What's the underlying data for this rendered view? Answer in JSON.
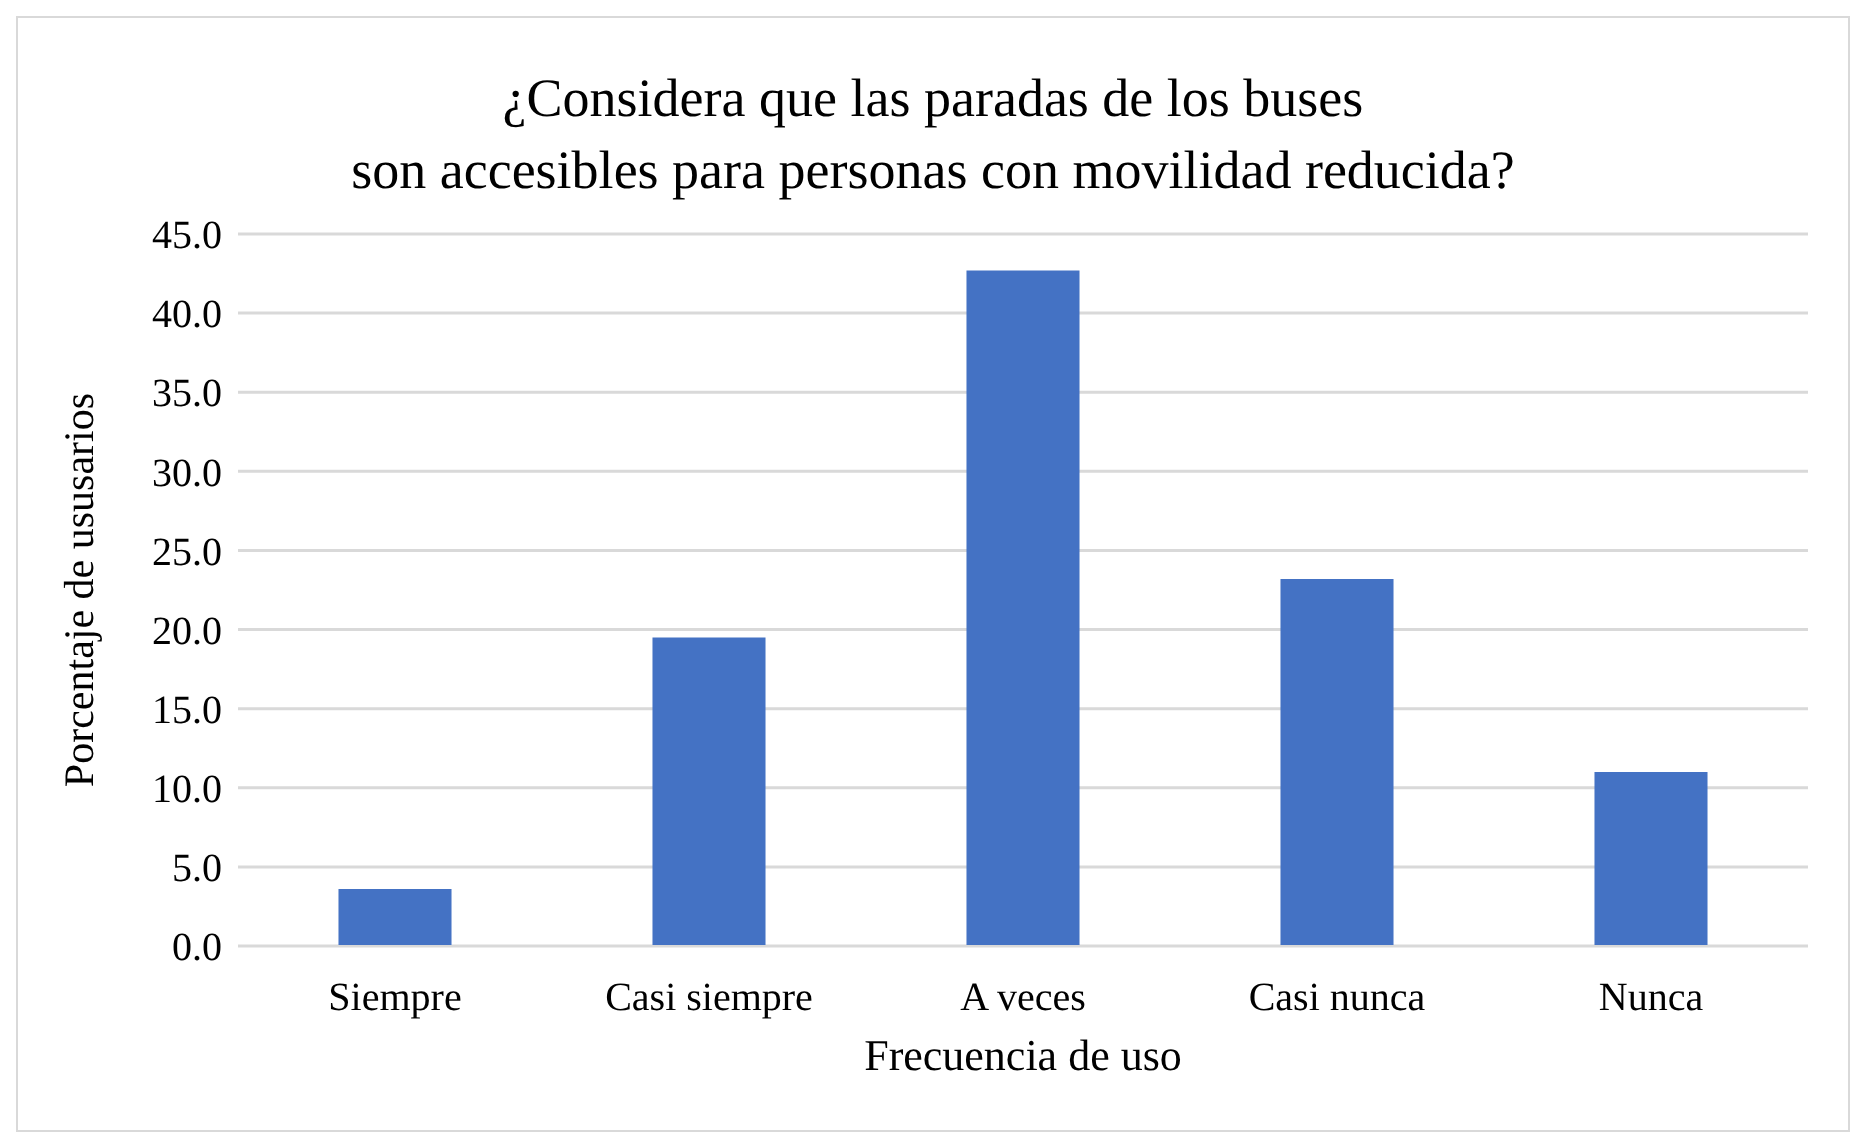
{
  "chart_data": {
    "type": "bar",
    "title": "¿Considera que las paradas de los buses\nson accesibles para personas con movilidad reducida?",
    "xlabel": "Frecuencia de uso",
    "ylabel": "Porcentaje de ususarios",
    "categories": [
      "Siempre",
      "Casi siempre",
      "A veces",
      "Casi nunca",
      "Nunca"
    ],
    "values": [
      3.6,
      19.5,
      42.7,
      23.2,
      11.0
    ],
    "color": "#4472c4",
    "ylim": [
      0,
      45
    ],
    "yticks": [
      {
        "value": 0,
        "label": "0.0"
      },
      {
        "value": 5,
        "label": "5.0"
      },
      {
        "value": 10,
        "label": "10.0"
      },
      {
        "value": 15,
        "label": "15.0"
      },
      {
        "value": 20,
        "label": "20.0"
      },
      {
        "value": 25,
        "label": "25.0"
      },
      {
        "value": 30,
        "label": "30.0"
      },
      {
        "value": 35,
        "label": "35.0"
      },
      {
        "value": 40,
        "label": "40.0"
      },
      {
        "value": 45,
        "label": "45.0"
      }
    ],
    "grid": "y",
    "legend": false
  }
}
